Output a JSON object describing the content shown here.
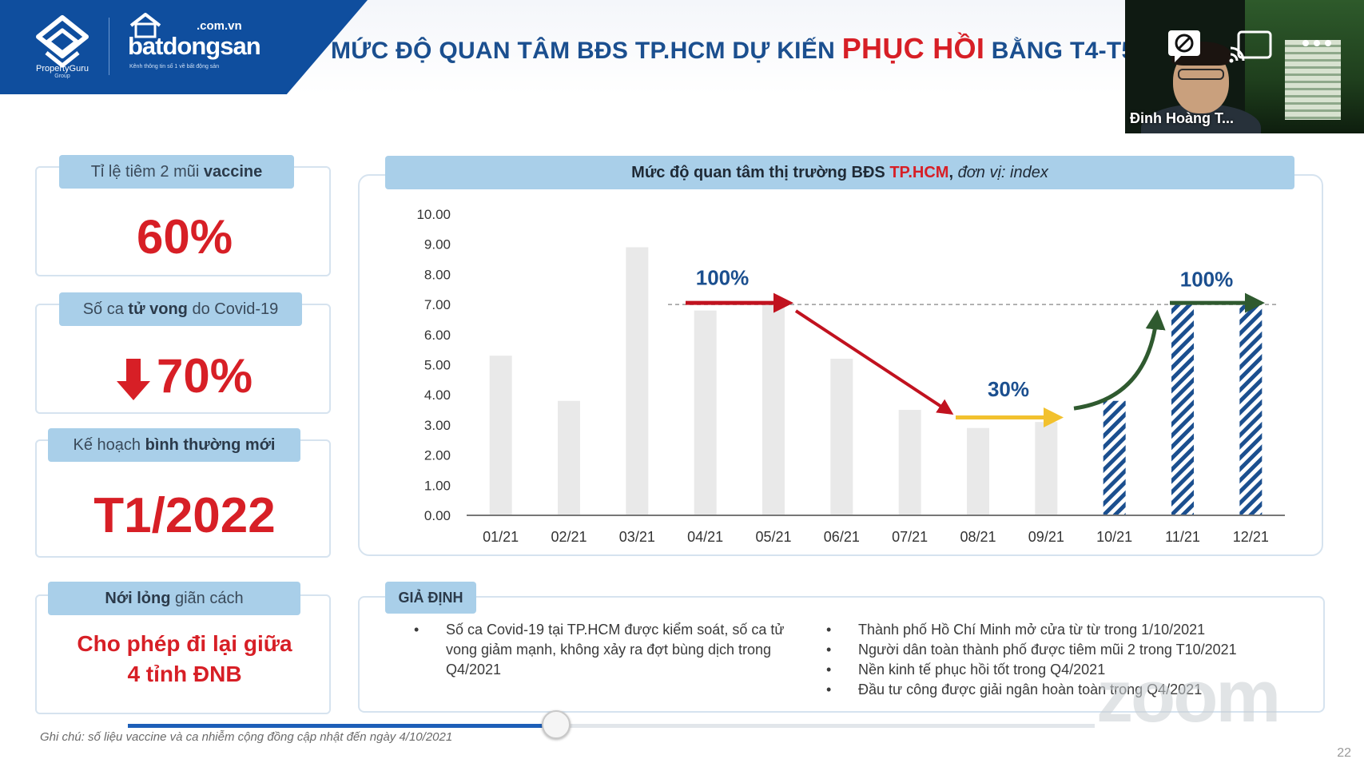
{
  "header": {
    "brand_pg": "PropertyGuru",
    "brand_pg_sub": "Group",
    "brand_bds_domain": ".com.vn",
    "brand_bds_name": "batdongsan",
    "brand_bds_tagline": "Kênh thông tin số 1 về bất động sản",
    "title_pre": "MỨC ĐỘ QUAN TÂM BĐS TP.HCM DỰ KIẾN ",
    "title_highlight": "PHỤC HỒI",
    "title_post": " BẰNG T4-T5"
  },
  "video": {
    "participant_name": "Đinh Hoàng T..."
  },
  "stats": [
    {
      "label_pre": "Tỉ lệ tiêm 2 mũi ",
      "label_bold": "vaccine",
      "label_post": "",
      "value": "60%"
    },
    {
      "label_pre": "Số ca ",
      "label_bold": "tử vong",
      "label_post": " do Covid-19",
      "value": "70%"
    },
    {
      "label_pre": "Kế hoạch ",
      "label_bold": "bình thường mới",
      "label_post": "",
      "value": "T1/2022"
    },
    {
      "label_pre": "",
      "label_bold": "Nới lỏng",
      "label_post": " giãn cách",
      "value_line1": "Cho phép đi lại giữa",
      "value_line2": "4 tỉnh ĐNB"
    }
  ],
  "chart_title": {
    "pre": "Mức độ quan tâm thị trường BĐS ",
    "red": "TP.HCM",
    "post": ", ",
    "italic": "đơn vị: index"
  },
  "chart_data": {
    "type": "bar",
    "categories": [
      "01/21",
      "02/21",
      "03/21",
      "04/21",
      "05/21",
      "06/21",
      "07/21",
      "08/21",
      "09/21",
      "10/21",
      "11/21",
      "12/21"
    ],
    "values": [
      5.3,
      3.8,
      8.9,
      6.8,
      7.0,
      5.2,
      3.5,
      2.9,
      3.1,
      3.8,
      7.0,
      7.0
    ],
    "forecast_from_index": 9,
    "ylim": [
      0,
      10
    ],
    "yticks": [
      "0.00",
      "1.00",
      "2.00",
      "3.00",
      "4.00",
      "5.00",
      "6.00",
      "7.00",
      "8.00",
      "9.00",
      "10.00"
    ],
    "reference_line": 7.0,
    "annotations": [
      {
        "text": "100%",
        "color": "#1b4f8f"
      },
      {
        "text": "30%",
        "color": "#1b4f8f"
      },
      {
        "text": "100%",
        "color": "#1b4f8f"
      }
    ],
    "colors": {
      "actual": "#e9e9e9",
      "forecast": "#1b4f8f",
      "arrow_red": "#c1121f",
      "arrow_yellow": "#f2c12e",
      "arrow_green": "#2f5a2f"
    }
  },
  "assumptions": {
    "tag": "GIẢ ĐỊNH",
    "left": [
      "Số ca Covid-19 tại TP.HCM được kiểm soát, số ca tử vong giảm mạnh, không xảy ra đợt bùng dịch trong Q4/2021"
    ],
    "right": [
      "Thành phố Hồ Chí Minh mở cửa từ từ trong 1/10/2021",
      "Người dân toàn thành phố được tiêm mũi 2 trong T10/2021",
      "Nền kinh tế phục hồi tốt trong Q4/2021",
      "Đầu tư công được giải ngân hoàn toàn trong Q4/2021"
    ]
  },
  "footnote": "Ghi chú: số liệu vaccine và ca nhiễm cộng đồng cập nhật đến ngày 4/10/2021",
  "page_number": "22",
  "player": {
    "progress": 0.443
  },
  "watermark": "zoom"
}
